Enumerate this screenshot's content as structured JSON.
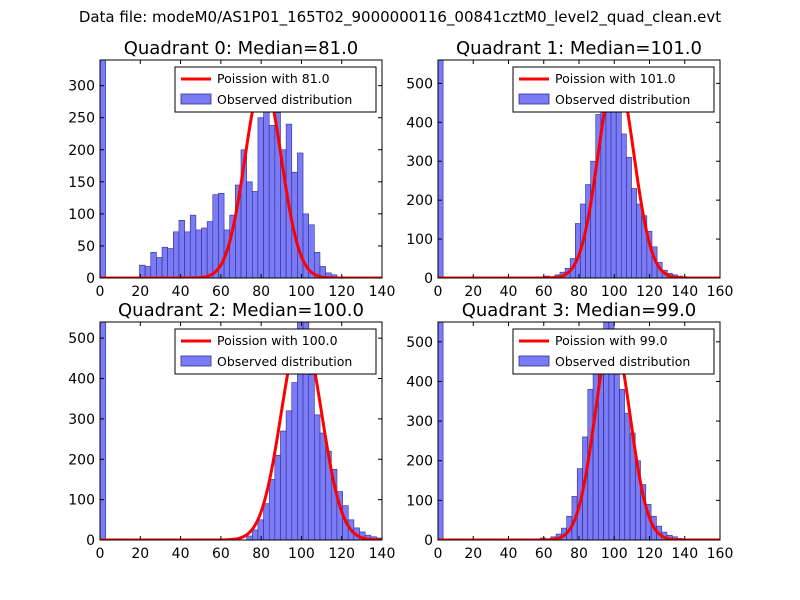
{
  "figure_title": "Data file: modeM0/AS1P01_165T02_9000000116_00841cztM0_level2_quad_clean.evt",
  "colors": {
    "hist_fill": "#7b7bf6",
    "hist_edge": "#2d2d8f",
    "fit_line": "#ff0000",
    "axes": "#000000"
  },
  "chart_data": [
    {
      "type": "bar",
      "title": "Quadrant 0: Median=81.0",
      "xlim": [
        0,
        140
      ],
      "ylim": [
        0,
        340
      ],
      "xticks": [
        0,
        20,
        40,
        60,
        80,
        100,
        120,
        140
      ],
      "yticks": [
        0,
        50,
        100,
        150,
        200,
        250,
        300
      ],
      "bin_width": 2.8,
      "bin_starts": [
        0,
        19.6,
        22.4,
        25.2,
        28,
        30.8,
        33.6,
        36.4,
        39.2,
        42,
        44.8,
        47.6,
        50.4,
        53.2,
        56,
        58.8,
        61.6,
        64.4,
        67.2,
        70,
        72.8,
        75.6,
        78.4,
        81.2,
        84,
        86.8,
        89.6,
        92.4,
        95.2,
        98,
        100.8,
        103.6,
        106.4,
        109.2,
        112,
        114.8
      ],
      "counts": [
        340,
        20,
        18,
        40,
        32,
        48,
        46,
        72,
        90,
        72,
        98,
        75,
        78,
        88,
        130,
        132,
        75,
        98,
        145,
        200,
        150,
        135,
        250,
        305,
        238,
        258,
        200,
        240,
        165,
        195,
        100,
        83,
        40,
        18,
        8,
        5
      ],
      "legend": [
        "Poission with 81.0",
        "Observed distribution"
      ],
      "fit": {
        "mean": 81.0,
        "peak": 310
      }
    },
    {
      "type": "bar",
      "title": "Quadrant 1: Median=101.0",
      "xlim": [
        0,
        160
      ],
      "ylim": [
        0,
        560
      ],
      "xticks": [
        0,
        20,
        40,
        60,
        80,
        100,
        120,
        140,
        160
      ],
      "yticks": [
        0,
        100,
        200,
        300,
        400,
        500
      ],
      "bin_width": 2.9,
      "bin_starts": [
        0,
        55,
        60.5,
        66.3,
        69.2,
        72.1,
        75,
        77.9,
        80.8,
        83.7,
        86.6,
        89.5,
        92.4,
        95.3,
        98.2,
        101.1,
        104,
        106.9,
        109.8,
        112.7,
        115.6,
        118.5,
        121.4,
        124.3,
        127.2,
        130.1,
        133,
        135.9,
        138.8,
        141.7
      ],
      "counts": [
        560,
        3,
        5,
        8,
        15,
        25,
        50,
        140,
        190,
        240,
        300,
        420,
        490,
        540,
        540,
        430,
        370,
        310,
        230,
        190,
        160,
        120,
        80,
        40,
        20,
        12,
        8,
        5,
        3,
        2
      ],
      "legend": [
        "Poission with 101.0",
        "Observed distribution"
      ],
      "fit": {
        "mean": 101.0,
        "peak": 530
      }
    },
    {
      "type": "bar",
      "title": "Quadrant 2: Median=100.0",
      "xlim": [
        0,
        140
      ],
      "ylim": [
        0,
        540
      ],
      "xticks": [
        0,
        20,
        40,
        60,
        80,
        100,
        120,
        140
      ],
      "yticks": [
        0,
        100,
        200,
        300,
        400,
        500
      ],
      "bin_width": 2.85,
      "bin_starts": [
        0,
        72.8,
        75.6,
        78.4,
        81.2,
        84,
        86.8,
        89.6,
        92.4,
        95.2,
        98,
        100.8,
        103.6,
        106.4,
        109.2,
        112,
        114.8,
        117.6,
        120.4,
        123.2,
        126,
        128.8,
        131.6,
        134.4,
        137.2
      ],
      "counts": [
        540,
        10,
        25,
        50,
        90,
        150,
        210,
        270,
        320,
        390,
        540,
        540,
        410,
        310,
        265,
        220,
        175,
        120,
        85,
        50,
        30,
        20,
        12,
        8,
        5
      ],
      "legend": [
        "Poission with 100.0",
        "Observed distribution"
      ],
      "fit": {
        "mean": 100.0,
        "peak": 520
      }
    },
    {
      "type": "bar",
      "title": "Quadrant 3: Median=99.0",
      "xlim": [
        0,
        160
      ],
      "ylim": [
        0,
        550
      ],
      "xticks": [
        0,
        20,
        40,
        60,
        80,
        100,
        120,
        140,
        160
      ],
      "yticks": [
        0,
        100,
        200,
        300,
        400,
        500
      ],
      "bin_width": 2.9,
      "bin_starts": [
        0,
        52,
        58,
        64,
        67,
        70,
        73,
        76,
        79,
        82,
        85,
        88,
        91,
        94,
        97,
        100,
        103,
        106,
        109,
        112,
        115,
        118,
        121,
        124,
        127,
        130,
        133,
        136,
        139
      ],
      "counts": [
        550,
        3,
        5,
        8,
        15,
        30,
        60,
        110,
        180,
        260,
        380,
        420,
        480,
        550,
        550,
        500,
        380,
        320,
        270,
        200,
        140,
        90,
        60,
        35,
        20,
        12,
        8,
        4,
        2
      ],
      "legend": [
        "Poission with 99.0",
        "Observed distribution"
      ],
      "fit": {
        "mean": 99.0,
        "peak": 520
      }
    }
  ]
}
